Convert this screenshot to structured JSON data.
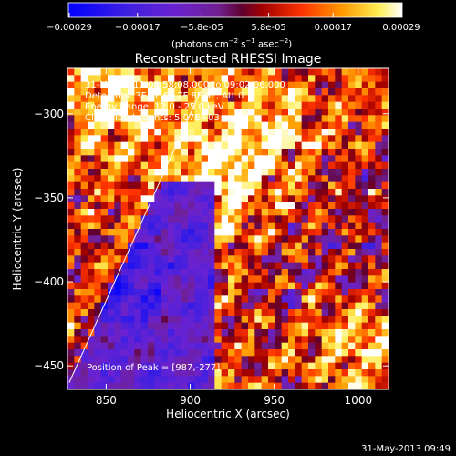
{
  "chart_data": {
    "type": "heatmap",
    "title": "Reconstructed RHESSI Image",
    "xlabel": "Heliocentric X (arcsec)",
    "ylabel": "Heliocentric Y (arcsec)",
    "xlim": [
      827,
      1018
    ],
    "ylim": [
      -464,
      -273
    ],
    "x_ticks": [
      "850",
      "900",
      "950",
      "1000"
    ],
    "x_tick_values": [
      850,
      900,
      950,
      1000
    ],
    "y_ticks": [
      "-300",
      "-350",
      "-400",
      "-450"
    ],
    "y_tick_values": [
      -300,
      -350,
      -400,
      -450
    ],
    "colorbar": {
      "ticks": [
        "-0.00029",
        "-0.00017",
        "-5.8e-05",
        "5.8e-05",
        "0.00017",
        "0.00029"
      ],
      "tick_values": [
        -0.00029,
        -0.00017,
        -5.8e-05,
        5.8e-05,
        0.00017,
        0.00029
      ],
      "range": [
        -0.00029,
        0.00029
      ],
      "colors": [
        "#0000ff",
        "#6a22d0",
        "#7a2080",
        "#b00000",
        "#ff4400",
        "#ff9900",
        "#ffff66",
        "#ffffff"
      ]
    },
    "annotations": [
      "31-May-2013 08:58:08.000 to 09:02:06.000",
      "Detectors: 3F 5F 6F 7F 8F 9F, Att 0",
      "Energy Range: 12.0 - 25.0 keV",
      "Clean   Total counts: 5.07E+03"
    ],
    "peak_label": "Position of Peak = [987,-277]",
    "limb_line": [
      [
        828,
        -460
      ],
      [
        906,
        -287
      ]
    ]
  },
  "colorbar_units": "(photons cm",
  "footer": "31-May-2013 09:49"
}
